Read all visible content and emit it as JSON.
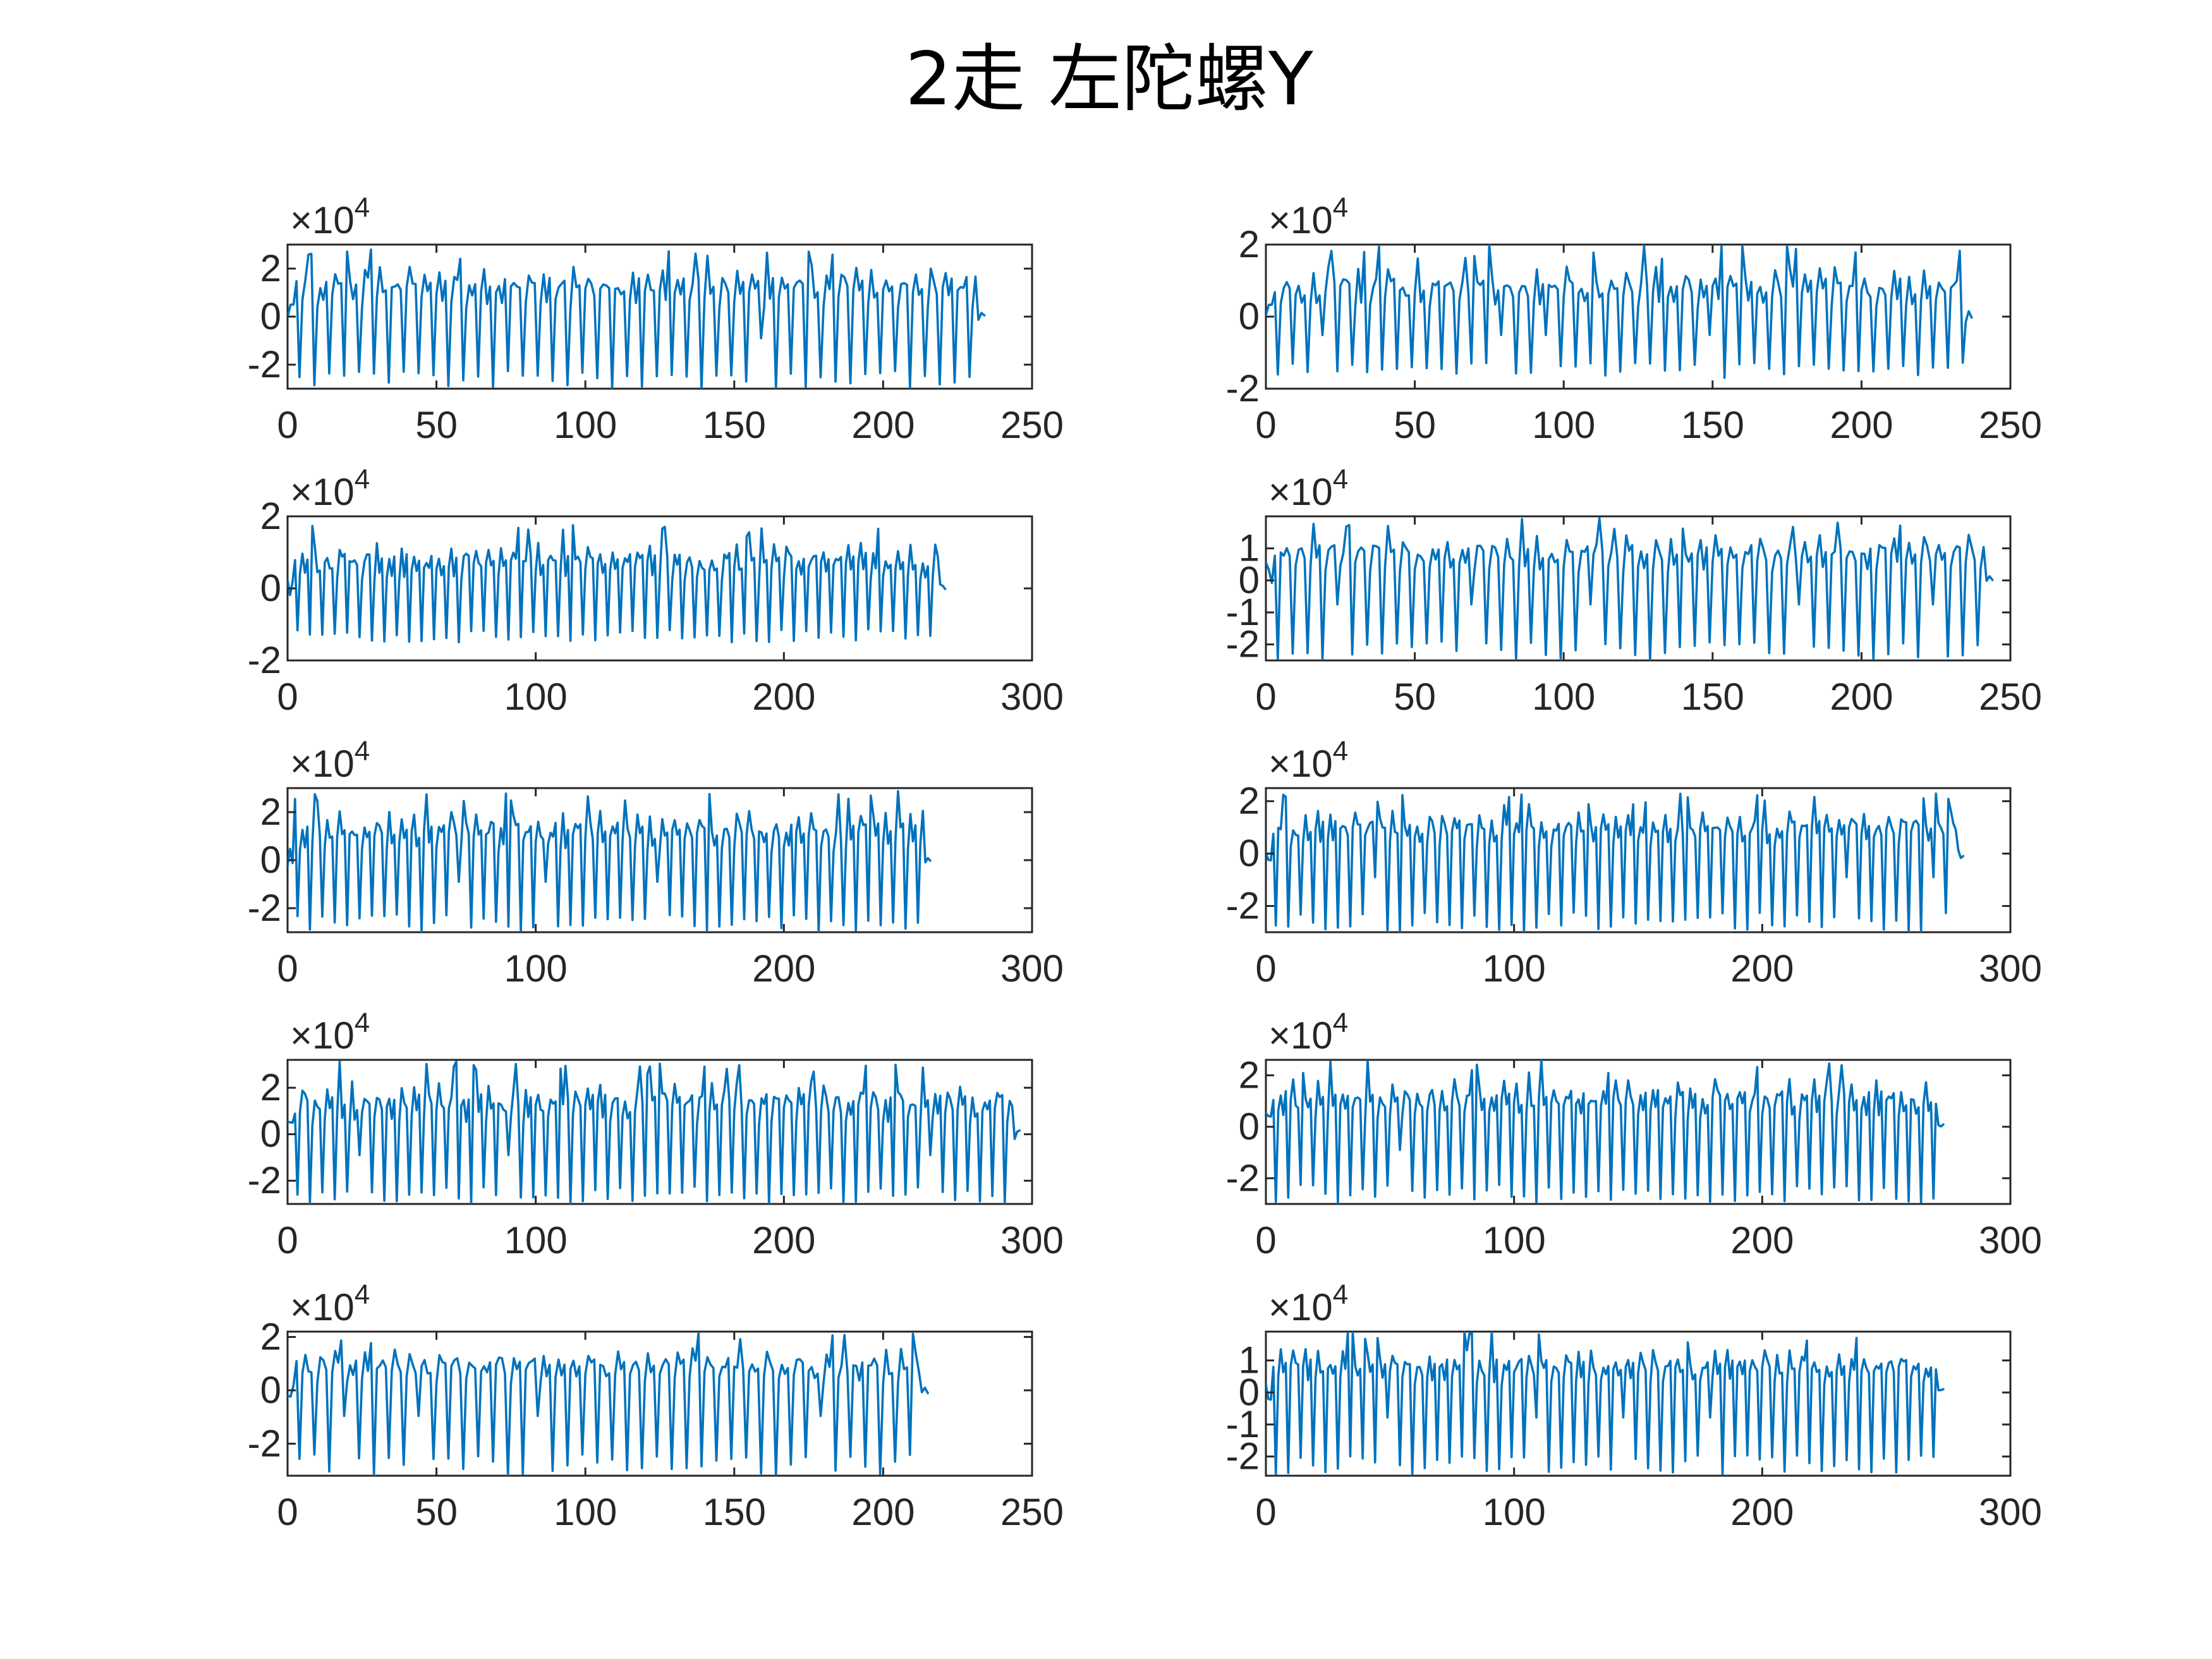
{
  "figure_title": "2走  左陀螺Y",
  "chart_data": [
    {
      "type": "line",
      "panel": "row1-left",
      "exponent_label": "×10",
      "exponent_power": "4",
      "xlim": [
        0,
        250
      ],
      "xticks": [
        0,
        50,
        100,
        150,
        200,
        250
      ],
      "ylim": [
        -3,
        3
      ],
      "yticks": [
        -2,
        0,
        2
      ],
      "ytick_labels": [
        "-2",
        "0",
        "2"
      ],
      "num_points": 235,
      "ymin": -3,
      "ymax": 3,
      "seed": 11,
      "series": [
        {
          "color": "#0072BD"
        }
      ]
    },
    {
      "type": "line",
      "panel": "row1-right",
      "exponent_label": "×10",
      "exponent_power": "4",
      "xlim": [
        0,
        250
      ],
      "xticks": [
        0,
        50,
        100,
        150,
        200,
        250
      ],
      "ylim": [
        -2,
        2
      ],
      "yticks": [
        -2,
        0,
        2
      ],
      "ytick_labels": [
        "-2",
        "0",
        "2"
      ],
      "num_points": 238,
      "ymin": -1.7,
      "ymax": 2.0,
      "seed": 23,
      "series": [
        {
          "color": "#0072BD"
        }
      ]
    },
    {
      "type": "line",
      "panel": "row2-left",
      "exponent_label": "×10",
      "exponent_power": "4",
      "xlim": [
        0,
        300
      ],
      "xticks": [
        0,
        100,
        200,
        300
      ],
      "ylim": [
        -2,
        2
      ],
      "yticks": [
        -2,
        0,
        2
      ],
      "ytick_labels": [
        "-2",
        "0",
        "2"
      ],
      "num_points": 266,
      "ymin": -1.5,
      "ymax": 1.8,
      "seed": 37,
      "series": [
        {
          "color": "#0072BD"
        }
      ]
    },
    {
      "type": "line",
      "panel": "row2-right",
      "exponent_label": "×10",
      "exponent_power": "4",
      "xlim": [
        0,
        250
      ],
      "xticks": [
        0,
        50,
        100,
        150,
        200,
        250
      ],
      "ylim": [
        -2.5,
        2
      ],
      "yticks": [
        -2,
        -1,
        0,
        1
      ],
      "ytick_labels": [
        "-2",
        "-1",
        "0",
        "1"
      ],
      "num_points": 245,
      "ymin": -2.5,
      "ymax": 2.0,
      "seed": 41,
      "series": [
        {
          "color": "#0072BD"
        }
      ]
    },
    {
      "type": "line",
      "panel": "row3-left",
      "exponent_label": "×10",
      "exponent_power": "4",
      "xlim": [
        0,
        300
      ],
      "xticks": [
        0,
        100,
        200,
        300
      ],
      "ylim": [
        -3,
        3
      ],
      "yticks": [
        -2,
        0,
        2
      ],
      "ytick_labels": [
        "-2",
        "0",
        "2"
      ],
      "num_points": 260,
      "ymin": -3,
      "ymax": 2.9,
      "seed": 53,
      "series": [
        {
          "color": "#0072BD"
        }
      ]
    },
    {
      "type": "line",
      "panel": "row3-right",
      "exponent_label": "×10",
      "exponent_power": "4",
      "xlim": [
        0,
        300
      ],
      "xticks": [
        0,
        100,
        200,
        300
      ],
      "ylim": [
        -3,
        2.5
      ],
      "yticks": [
        -2,
        0,
        2
      ],
      "ytick_labels": [
        "-2",
        "0",
        "2"
      ],
      "num_points": 282,
      "ymin": -3,
      "ymax": 2.3,
      "seed": 67,
      "series": [
        {
          "color": "#0072BD"
        }
      ]
    },
    {
      "type": "line",
      "panel": "row4-left",
      "exponent_label": "×10",
      "exponent_power": "4",
      "xlim": [
        0,
        300
      ],
      "xticks": [
        0,
        100,
        200,
        300
      ],
      "ylim": [
        -3,
        3.2
      ],
      "yticks": [
        -2,
        0,
        2
      ],
      "ytick_labels": [
        "-2",
        "0",
        "2"
      ],
      "num_points": 296,
      "ymin": -3,
      "ymax": 3.2,
      "seed": 71,
      "series": [
        {
          "color": "#0072BD"
        }
      ]
    },
    {
      "type": "line",
      "panel": "row4-right",
      "exponent_label": "×10",
      "exponent_power": "4",
      "xlim": [
        0,
        300
      ],
      "xticks": [
        0,
        100,
        200,
        300
      ],
      "ylim": [
        -3,
        2.6
      ],
      "yticks": [
        -2,
        0,
        2
      ],
      "ytick_labels": [
        "-2",
        "0",
        "2"
      ],
      "num_points": 274,
      "ymin": -3,
      "ymax": 2.6,
      "seed": 83,
      "series": [
        {
          "color": "#0072BD"
        }
      ]
    },
    {
      "type": "line",
      "panel": "row5-left",
      "exponent_label": "×10",
      "exponent_power": "4",
      "xlim": [
        0,
        250
      ],
      "xticks": [
        0,
        50,
        100,
        150,
        200,
        250
      ],
      "ylim": [
        -3.2,
        2.2
      ],
      "yticks": [
        -2,
        0,
        2
      ],
      "ytick_labels": [
        "-2",
        "0",
        "2"
      ],
      "num_points": 216,
      "ymin": -3.2,
      "ymax": 2.2,
      "seed": 97,
      "series": [
        {
          "color": "#0072BD"
        }
      ]
    },
    {
      "type": "line",
      "panel": "row5-right",
      "exponent_label": "×10",
      "exponent_power": "4",
      "xlim": [
        0,
        300
      ],
      "xticks": [
        0,
        100,
        200,
        300
      ],
      "ylim": [
        -2.6,
        1.9
      ],
      "yticks": [
        -2,
        -1,
        0,
        1
      ],
      "ytick_labels": [
        "-2",
        "-1",
        "0",
        "1"
      ],
      "num_points": 274,
      "ymin": -2.6,
      "ymax": 1.9,
      "seed": 103,
      "series": [
        {
          "color": "#0072BD"
        }
      ]
    }
  ]
}
